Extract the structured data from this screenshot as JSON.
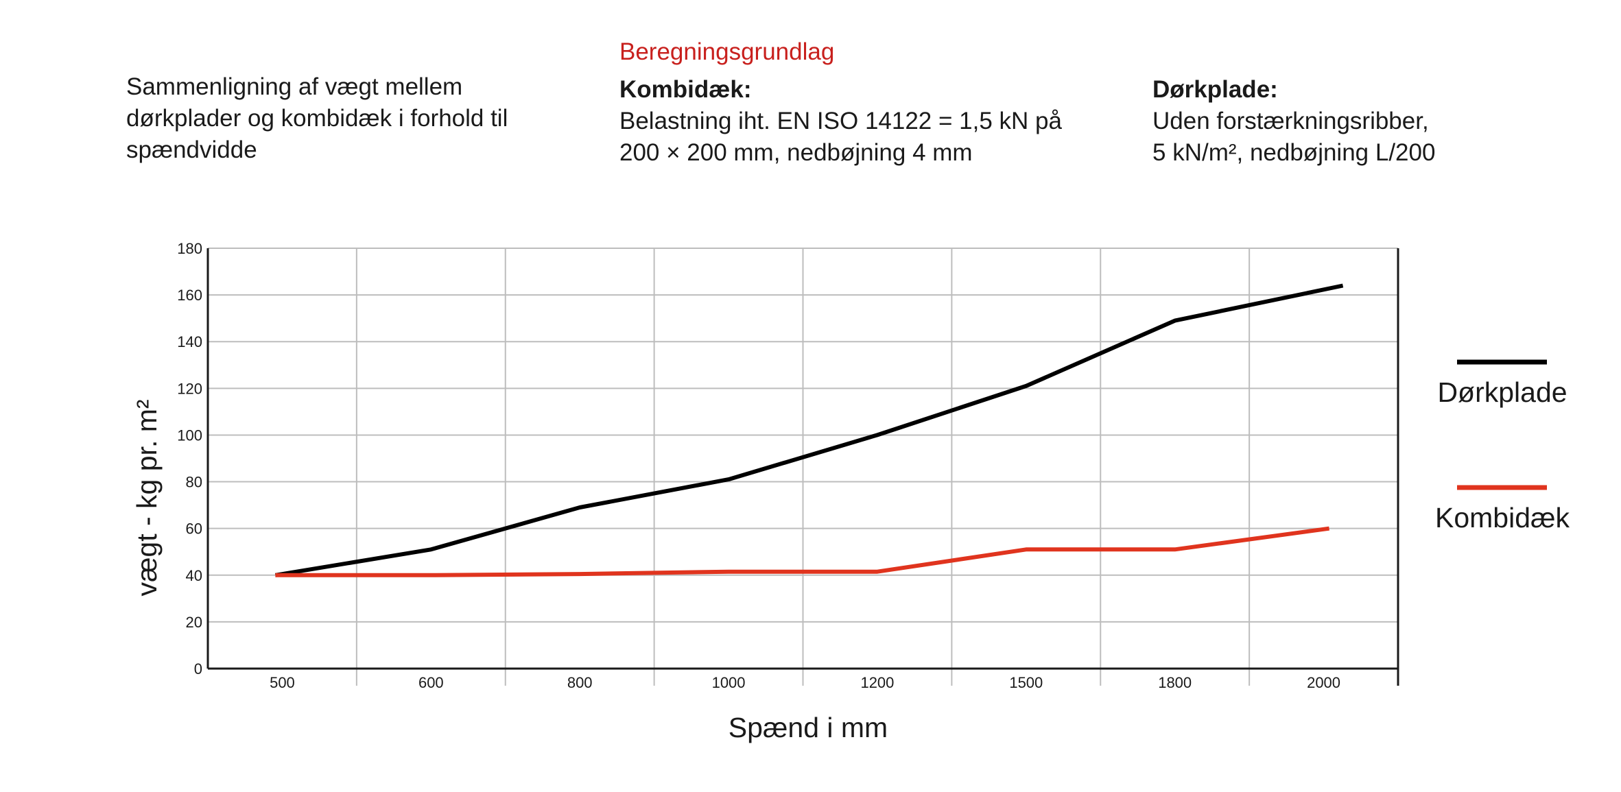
{
  "header": {
    "intro_lines": [
      "Sammenligning af vægt mellem",
      "dørkplader og kombidæk i forhold til",
      "spændvidde"
    ],
    "basis_title": "Beregningsgrundlag",
    "kombidaek": {
      "heading": "Kombidæk:",
      "lines": [
        "Belastning iht. EN ISO 14122 = 1,5 kN på",
        "200 × 200 mm, nedbøjning 4 mm"
      ]
    },
    "dorkplade": {
      "heading": "Dørkplade:",
      "lines": [
        "Uden forstærkningsribber,",
        "5 kN/m², nedbøjning L/200"
      ]
    },
    "accent_color": "#c8201d"
  },
  "chart_data": {
    "type": "line",
    "categories": [
      "500",
      "600",
      "800",
      "1000",
      "1200",
      "1500",
      "1800",
      "2000"
    ],
    "series": [
      {
        "name": "Dørkplade",
        "color": "#000000",
        "values": [
          40,
          51,
          69,
          81,
          100,
          121,
          149,
          164
        ]
      },
      {
        "name": "Kombidæk",
        "color": "#e0341e",
        "values": [
          40,
          40,
          40.5,
          41.5,
          41.5,
          51,
          51,
          60
        ]
      }
    ],
    "xlabel": "Spænd i mm",
    "ylabel": "vægt - kg pr. m²",
    "ylim": [
      0,
      180
    ],
    "yticks": [
      0,
      20,
      40,
      60,
      80,
      100,
      120,
      140,
      160,
      180
    ],
    "grid": true,
    "legend_position": "right"
  }
}
